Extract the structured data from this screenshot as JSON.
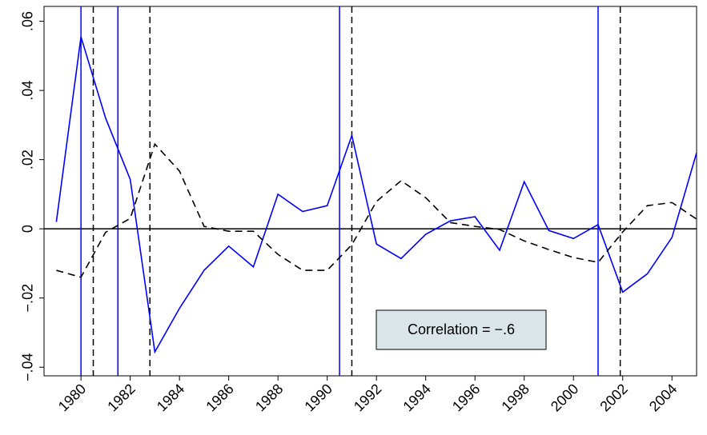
{
  "chart_data": {
    "type": "line",
    "x": [
      1979,
      1980,
      1981,
      1982,
      1983,
      1984,
      1985,
      1986,
      1987,
      1988,
      1989,
      1990,
      1991,
      1992,
      1993,
      1994,
      1995,
      1996,
      1997,
      1998,
      1999,
      2000,
      2001,
      2002,
      2003,
      2004,
      2005
    ],
    "series": [
      {
        "color": "#0000ff",
        "dash": false,
        "values": [
          0.002,
          0.0555,
          0.032,
          0.0143,
          -0.0356,
          -0.023,
          -0.012,
          -0.005,
          -0.011,
          0.01,
          0.005,
          0.0067,
          0.027,
          -0.0044,
          -0.0086,
          -0.0016,
          0.0023,
          0.0035,
          -0.0062,
          0.0136,
          -0.0005,
          -0.0028,
          0.0012,
          -0.0183,
          -0.013,
          -0.0025,
          0.022
        ]
      },
      {
        "color": "#000000",
        "dash": true,
        "values": [
          -0.012,
          -0.014,
          -0.001,
          0.003,
          0.0245,
          0.0167,
          0.0007,
          -0.0007,
          -0.0007,
          -0.0074,
          -0.012,
          -0.012,
          -0.0046,
          0.0079,
          0.0139,
          0.009,
          0.0018,
          0.0007,
          -0.0002,
          -0.0035,
          -0.006,
          -0.0083,
          -0.0097,
          -0.0009,
          0.0067,
          0.0076,
          0.0028
        ]
      }
    ],
    "reference_lines": [
      {
        "color": "#0000ff",
        "dash": false,
        "x": [
          1980.0,
          1981.5,
          1990.5,
          2001.0
        ]
      },
      {
        "color": "#000000",
        "dash": true,
        "x": [
          1980.5,
          1982.8,
          1991.0,
          2001.9
        ]
      }
    ],
    "hline": 0,
    "annotation": "Correlation = −.6",
    "xlim": [
      1978.5,
      2005.0
    ],
    "xticks": [
      1980,
      1982,
      1984,
      1986,
      1988,
      1990,
      1992,
      1994,
      1996,
      1998,
      2000,
      2002,
      2004
    ],
    "ylim": [
      -0.0425,
      0.0643
    ],
    "yticks": [
      {
        "value": -0.04,
        "label": "−.04"
      },
      {
        "value": -0.02,
        "label": "−.02"
      },
      0,
      {
        "value": 0.02,
        "label": ".02"
      },
      {
        "value": 0.04,
        "label": ".04"
      },
      {
        "value": 0.06,
        "label": ".06"
      }
    ]
  }
}
